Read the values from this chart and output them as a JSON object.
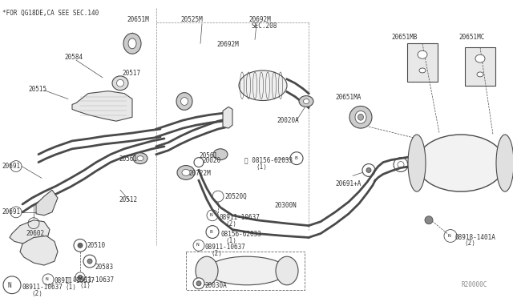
{
  "bg_color": "#ffffff",
  "line_color": "#4a4a4a",
  "text_color": "#333333",
  "ref_code": "R20000C",
  "note_text": "*FOR QG18DE,CA SEE SEC.140",
  "sec_text": "SEC.208",
  "fig_width": 6.4,
  "fig_height": 3.72,
  "dpi": 100
}
